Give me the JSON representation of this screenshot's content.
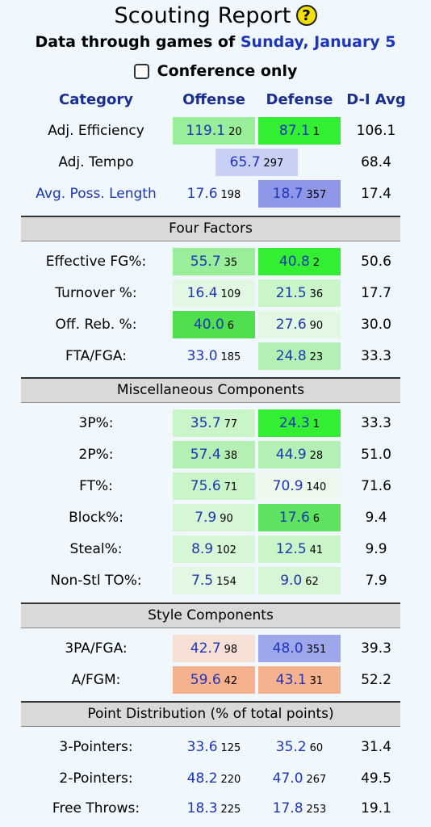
{
  "title": "Scouting Report",
  "help_symbol": "?",
  "subtitle": {
    "prefix": "Data through games of ",
    "date": "Sunday, January 5"
  },
  "conference_only": {
    "label": "Conference only",
    "checked": false
  },
  "headers": {
    "category": "Category",
    "offense": "Offense",
    "defense": "Defense",
    "avg": "D-I Avg"
  },
  "top_rows": [
    {
      "label": "Adj. Efficiency",
      "off": "119.1",
      "off_rank": "20",
      "def": "87.1",
      "def_rank": "1",
      "avg": "106.1"
    },
    {
      "label": "Adj. Tempo",
      "val": "65.7",
      "rank": "297",
      "avg": "68.4"
    },
    {
      "label": "Avg. Poss. Length",
      "off": "17.6",
      "off_rank": "198",
      "def": "18.7",
      "def_rank": "357",
      "avg": "17.4"
    }
  ],
  "four_factors": {
    "title": "Four Factors",
    "rows": [
      {
        "label": "Effective FG%:",
        "off": "55.7",
        "off_rank": "35",
        "def": "40.8",
        "def_rank": "2",
        "avg": "50.6"
      },
      {
        "label": "Turnover %:",
        "off": "16.4",
        "off_rank": "109",
        "def": "21.5",
        "def_rank": "36",
        "avg": "17.7"
      },
      {
        "label": "Off. Reb. %:",
        "off": "40.0",
        "off_rank": "6",
        "def": "27.6",
        "def_rank": "90",
        "avg": "30.0"
      },
      {
        "label": "FTA/FGA:",
        "off": "33.0",
        "off_rank": "185",
        "def": "24.8",
        "def_rank": "23",
        "avg": "33.3"
      }
    ]
  },
  "misc": {
    "title": "Miscellaneous Components",
    "rows": [
      {
        "label": "3P%:",
        "off": "35.7",
        "off_rank": "77",
        "def": "24.3",
        "def_rank": "1",
        "avg": "33.3"
      },
      {
        "label": "2P%:",
        "off": "57.4",
        "off_rank": "38",
        "def": "44.9",
        "def_rank": "28",
        "avg": "51.0"
      },
      {
        "label": "FT%:",
        "off": "75.6",
        "off_rank": "71",
        "def": "70.9",
        "def_rank": "140",
        "avg": "71.6"
      },
      {
        "label": "Block%:",
        "off": "7.9",
        "off_rank": "90",
        "def": "17.6",
        "def_rank": "6",
        "avg": "9.4"
      },
      {
        "label": "Steal%:",
        "off": "8.9",
        "off_rank": "102",
        "def": "12.5",
        "def_rank": "41",
        "avg": "9.9"
      },
      {
        "label": "Non-Stl TO%:",
        "off": "7.5",
        "off_rank": "154",
        "def": "9.0",
        "def_rank": "62",
        "avg": "7.9"
      }
    ]
  },
  "style": {
    "title": "Style Components",
    "rows": [
      {
        "label": "3PA/FGA:",
        "off": "42.7",
        "off_rank": "98",
        "def": "48.0",
        "def_rank": "351",
        "avg": "39.3"
      },
      {
        "label": "A/FGM:",
        "off": "59.6",
        "off_rank": "42",
        "def": "43.1",
        "def_rank": "31",
        "avg": "52.2"
      }
    ]
  },
  "point_dist": {
    "title": "Point Distribution (% of total points)",
    "rows": [
      {
        "label": "3-Pointers:",
        "off": "33.6",
        "off_rank": "125",
        "def": "35.2",
        "def_rank": "60",
        "avg": "31.4"
      },
      {
        "label": "2-Pointers:",
        "off": "48.2",
        "off_rank": "220",
        "def": "47.0",
        "def_rank": "267",
        "avg": "49.5"
      },
      {
        "label": "Free Throws:",
        "off": "18.3",
        "off_rank": "225",
        "def": "17.8",
        "def_rank": "253",
        "avg": "19.1"
      }
    ]
  },
  "colors": {
    "page_bg": "#f0f8fd",
    "link_blue": "#1d35b8",
    "header_blue": "#1a2f8f",
    "best_green": "#33ee33",
    "good_green": "#5fe25f",
    "mid_green": "#99ee99",
    "light_green": "#c9f5c9",
    "pale_green": "#e2f8e2",
    "mid_blue": "#b5bff2",
    "deep_blue": "#8f96e8",
    "salmon": "#f6b28f",
    "pale_salmon": "#f6e0d6"
  }
}
